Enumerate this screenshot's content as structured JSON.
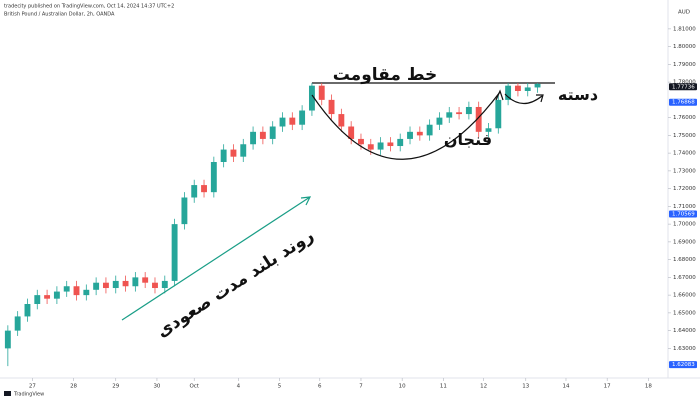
{
  "chart_data": {
    "type": "candlestick",
    "header": "tradecity published on TradingView.com, Oct 14, 2024 14:37 UTC+2",
    "subtitle": "British Pound / Australian Dollar, 2h, OANDA",
    "currency": "AUD",
    "footer": "TradingView",
    "up_color": "#26a69a",
    "down_color": "#ef5350",
    "open": [
      1.63,
      1.64,
      1.648,
      1.655,
      1.66,
      1.658,
      1.662,
      1.665,
      1.66,
      1.663,
      1.667,
      1.664,
      1.668,
      1.665,
      1.67,
      1.667,
      1.664,
      1.668,
      1.7,
      1.715,
      1.722,
      1.718,
      1.735,
      1.742,
      1.738,
      1.745,
      1.752,
      1.748,
      1.755,
      1.76,
      1.756,
      1.764,
      1.778,
      1.77,
      1.762,
      1.755,
      1.748,
      1.745,
      1.742,
      1.746,
      1.744,
      1.748,
      1.752,
      1.75,
      1.756,
      1.76,
      1.763,
      1.762,
      1.766,
      1.752,
      1.754,
      1.77,
      1.778,
      1.775,
      1.777
    ],
    "high": [
      1.643,
      1.651,
      1.658,
      1.663,
      1.663,
      1.665,
      1.668,
      1.668,
      1.666,
      1.67,
      1.67,
      1.671,
      1.671,
      1.673,
      1.673,
      1.67,
      1.671,
      1.703,
      1.718,
      1.725,
      1.725,
      1.738,
      1.745,
      1.745,
      1.748,
      1.755,
      1.755,
      1.758,
      1.763,
      1.763,
      1.767,
      1.7795,
      1.7795,
      1.773,
      1.765,
      1.758,
      1.751,
      1.748,
      1.749,
      1.749,
      1.751,
      1.755,
      1.755,
      1.759,
      1.763,
      1.766,
      1.766,
      1.769,
      1.769,
      1.757,
      1.773,
      1.7795,
      1.7795,
      1.7795,
      1.7795
    ],
    "low": [
      1.62,
      1.637,
      1.645,
      1.652,
      1.655,
      1.655,
      1.659,
      1.657,
      1.657,
      1.66,
      1.661,
      1.661,
      1.662,
      1.662,
      1.664,
      1.661,
      1.661,
      1.665,
      1.697,
      1.712,
      1.715,
      1.715,
      1.732,
      1.735,
      1.735,
      1.742,
      1.745,
      1.745,
      1.752,
      1.753,
      1.753,
      1.761,
      1.767,
      1.759,
      1.752,
      1.745,
      1.742,
      1.739,
      1.739,
      1.741,
      1.741,
      1.745,
      1.747,
      1.747,
      1.753,
      1.757,
      1.759,
      1.759,
      1.749,
      1.749,
      1.751,
      1.767,
      1.772,
      1.772,
      1.774
    ],
    "close": [
      1.64,
      1.648,
      1.655,
      1.66,
      1.658,
      1.662,
      1.665,
      1.66,
      1.663,
      1.667,
      1.664,
      1.668,
      1.665,
      1.67,
      1.667,
      1.664,
      1.668,
      1.7,
      1.715,
      1.722,
      1.718,
      1.735,
      1.742,
      1.738,
      1.745,
      1.752,
      1.748,
      1.755,
      1.76,
      1.756,
      1.764,
      1.778,
      1.77,
      1.762,
      1.755,
      1.748,
      1.745,
      1.742,
      1.746,
      1.744,
      1.748,
      1.752,
      1.75,
      1.756,
      1.76,
      1.763,
      1.762,
      1.766,
      1.752,
      1.754,
      1.77,
      1.778,
      1.775,
      1.777,
      1.779
    ],
    "ylim": [
      1.615,
      1.815
    ],
    "yticks": [
      {
        "value": 1.63,
        "label": "1.63000"
      },
      {
        "value": 1.64,
        "label": "1.64000"
      },
      {
        "value": 1.65,
        "label": "1.65000"
      },
      {
        "value": 1.66,
        "label": "1.66000"
      },
      {
        "value": 1.67,
        "label": "1.67000"
      },
      {
        "value": 1.68,
        "label": "1.68000"
      },
      {
        "value": 1.69,
        "label": "1.69000"
      },
      {
        "value": 1.7,
        "label": "1.70000"
      },
      {
        "value": 1.71,
        "label": "1.71000"
      },
      {
        "value": 1.72,
        "label": "1.72000"
      },
      {
        "value": 1.73,
        "label": "1.73000"
      },
      {
        "value": 1.74,
        "label": "1.74000"
      },
      {
        "value": 1.75,
        "label": "1.75000"
      },
      {
        "value": 1.76,
        "label": "1.76000"
      },
      {
        "value": 1.78,
        "label": "1.78000"
      },
      {
        "value": 1.79,
        "label": "1.79000"
      },
      {
        "value": 1.8,
        "label": "1.80000"
      },
      {
        "value": 1.81,
        "label": "1.81000"
      }
    ],
    "xlim": [
      -0.8,
      67.3
    ],
    "xticks": [
      {
        "value": 2.5,
        "label": "27"
      },
      {
        "value": 6.7,
        "label": "28"
      },
      {
        "value": 11,
        "label": "29"
      },
      {
        "value": 15.2,
        "label": "30"
      },
      {
        "value": 19,
        "label": "Oct"
      },
      {
        "value": 23.5,
        "label": "4"
      },
      {
        "value": 27.7,
        "label": "5"
      },
      {
        "value": 31.8,
        "label": "6"
      },
      {
        "value": 36,
        "label": "7"
      },
      {
        "value": 40.2,
        "label": "10"
      },
      {
        "value": 44.4,
        "label": "11"
      },
      {
        "value": 48.5,
        "label": "12"
      },
      {
        "value": 52.8,
        "label": "13"
      },
      {
        "value": 56.9,
        "label": "14"
      },
      {
        "value": 61.1,
        "label": "17"
      },
      {
        "value": 65.3,
        "label": "18"
      }
    ],
    "price_labels": [
      {
        "value": 1.77736,
        "label": "1.77736"
      },
      {
        "value": 1.76868,
        "label": "1.76868"
      },
      {
        "value": 1.70569,
        "label": "1.70569"
      },
      {
        "value": 1.62083,
        "label": "1.62083"
      }
    ],
    "resistance_level": 1.7795,
    "annotations": {
      "resistance": "خط مقاومت",
      "handle": "دسته",
      "cup": "فنجان",
      "trend": "روند بلند مدت صعودی"
    }
  }
}
